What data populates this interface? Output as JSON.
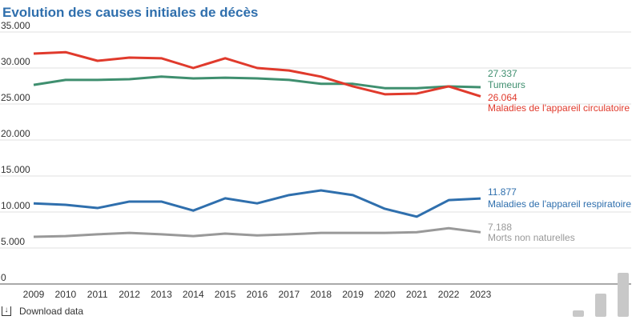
{
  "chart_data": {
    "type": "line",
    "title": "Evolution des causes initiales de décès",
    "x": [
      2009,
      2010,
      2011,
      2012,
      2013,
      2014,
      2015,
      2016,
      2017,
      2018,
      2019,
      2020,
      2021,
      2022,
      2023
    ],
    "ylim": [
      0,
      35000
    ],
    "y_ticks": [
      "0",
      "5.000",
      "10.000",
      "15.000",
      "20.000",
      "25.000",
      "30.000",
      "35.000"
    ],
    "x_ticks": [
      "2009",
      "2010",
      "2011",
      "2012",
      "2013",
      "2014",
      "2015",
      "2016",
      "2017",
      "2018",
      "2019",
      "2020",
      "2021",
      "2022",
      "2023"
    ],
    "grid": true,
    "legend": "direct labels at line ends",
    "series": [
      {
        "name": "Tumeurs",
        "end_label": "27.337",
        "color": "#3f8f6f",
        "values": [
          27650,
          28350,
          28350,
          28450,
          28800,
          28550,
          28650,
          28550,
          28350,
          27800,
          27800,
          27200,
          27200,
          27450,
          27337
        ]
      },
      {
        "name": "Maladies de l'appareil circulatoire",
        "end_label": "26.064",
        "color": "#e03a2c",
        "values": [
          32000,
          32200,
          31000,
          31450,
          31350,
          30000,
          31350,
          30000,
          29650,
          28800,
          27450,
          26350,
          26450,
          27450,
          26064
        ]
      },
      {
        "name": "Maladies de l'appareil respiratoire",
        "end_label": "11.877",
        "color": "#2f6fad",
        "values": [
          11200,
          11000,
          10550,
          11450,
          11450,
          10200,
          11900,
          11200,
          12350,
          13000,
          12350,
          10450,
          9350,
          11650,
          11877
        ]
      },
      {
        "name": "Morts non naturelles",
        "end_label": "7.188",
        "color": "#999999",
        "values": [
          6550,
          6650,
          6900,
          7100,
          6900,
          6650,
          7000,
          6750,
          6900,
          7100,
          7100,
          7100,
          7200,
          7750,
          7188
        ]
      }
    ]
  },
  "footer": {
    "download_label": "Download data",
    "download_icon": "download-icon"
  }
}
